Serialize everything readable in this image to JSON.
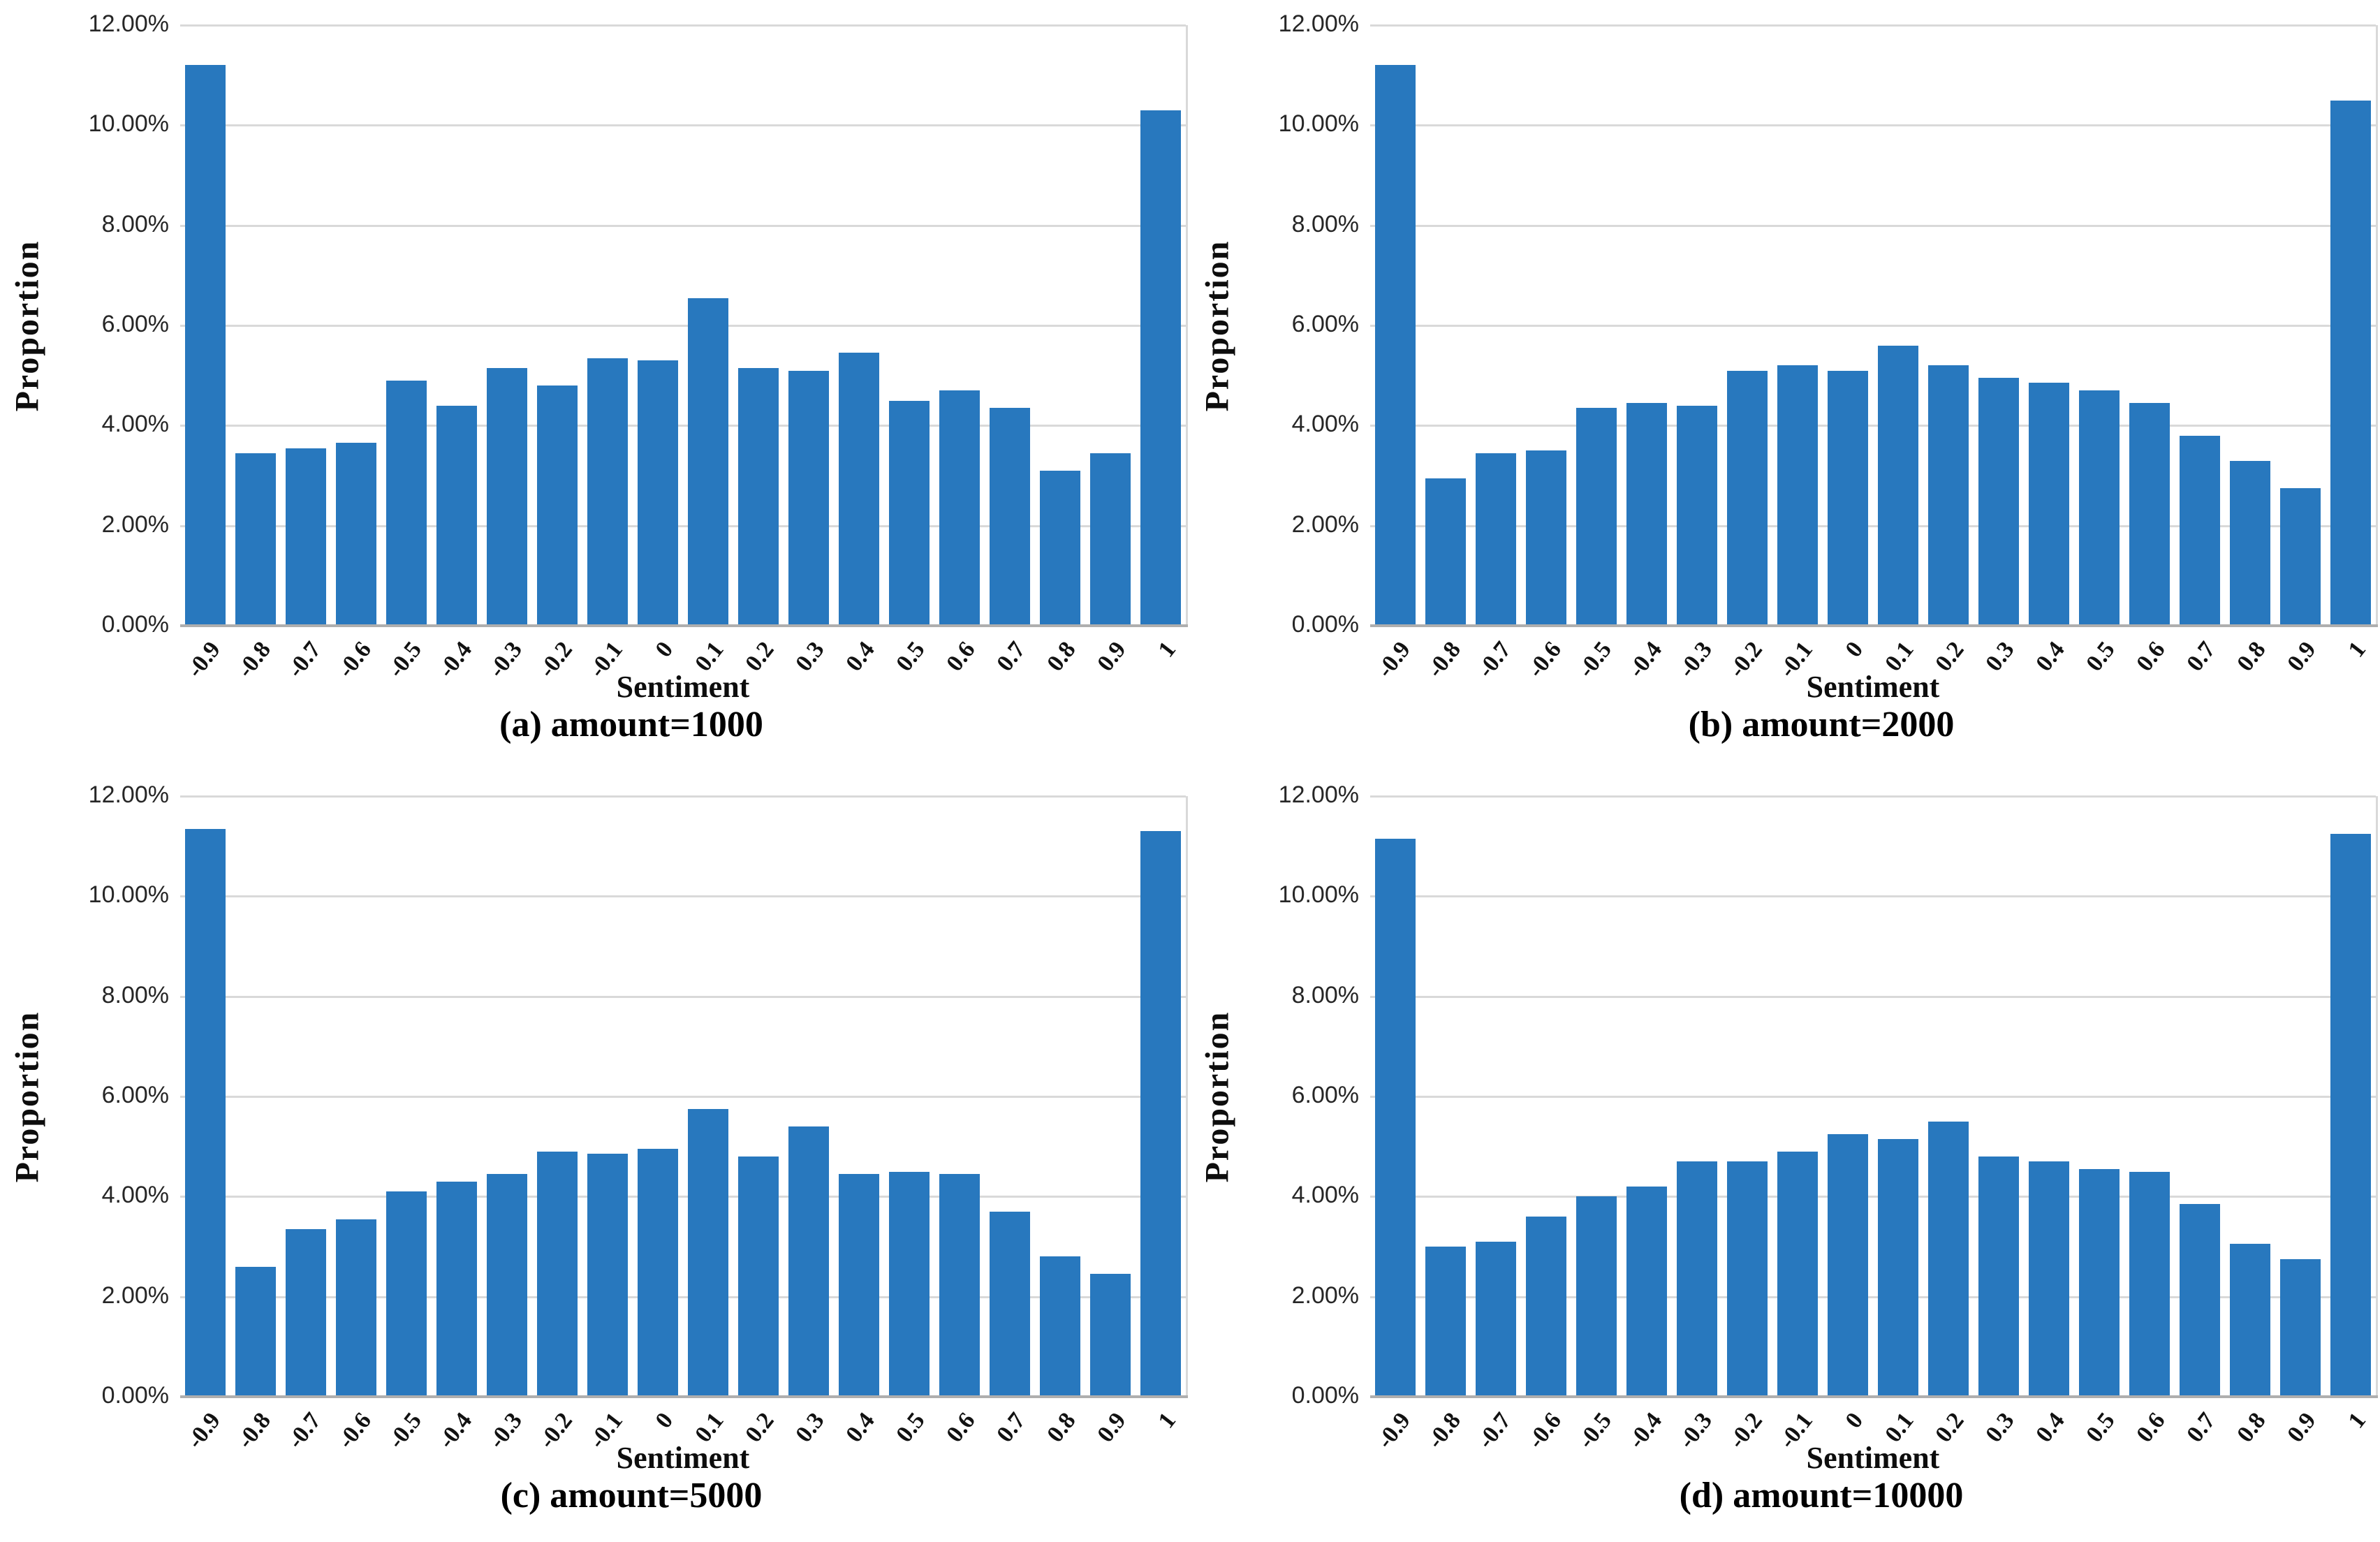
{
  "page": {
    "background": "#ffffff"
  },
  "colors": {
    "bar": "#2878be",
    "gridline": "#d9d9d9",
    "axis_line": "#aeaeae",
    "text": "#000000"
  },
  "chart_data": [
    {
      "type": "bar",
      "caption": "(a) amount=1000",
      "xlabel": "Sentiment",
      "ylabel": "Proportion",
      "grid": true,
      "legend": "none",
      "ylim": [
        0,
        12
      ],
      "ytick_step": 2,
      "ytick_labels": [
        "0.00%",
        "2.00%",
        "4.00%",
        "6.00%",
        "8.00%",
        "10.00%",
        "12.00%"
      ],
      "categories": [
        "-0.9",
        "-0.8",
        "-0.7",
        "-0.6",
        "-0.5",
        "-0.4",
        "-0.3",
        "-0.2",
        "-0.1",
        "0",
        "0.1",
        "0.2",
        "0.3",
        "0.4",
        "0.5",
        "0.6",
        "0.7",
        "0.8",
        "0.9",
        "1"
      ],
      "values": [
        11.2,
        3.45,
        3.55,
        3.65,
        4.9,
        4.4,
        5.15,
        4.8,
        5.35,
        5.3,
        6.55,
        5.15,
        5.1,
        5.45,
        4.5,
        4.7,
        4.35,
        3.1,
        3.45,
        10.3
      ]
    },
    {
      "type": "bar",
      "caption": "(b) amount=2000",
      "xlabel": "Sentiment",
      "ylabel": "Proportion",
      "grid": true,
      "legend": "none",
      "ylim": [
        0,
        12
      ],
      "ytick_step": 2,
      "ytick_labels": [
        "0.00%",
        "2.00%",
        "4.00%",
        "6.00%",
        "8.00%",
        "10.00%",
        "12.00%"
      ],
      "categories": [
        "-0.9",
        "-0.8",
        "-0.7",
        "-0.6",
        "-0.5",
        "-0.4",
        "-0.3",
        "-0.2",
        "-0.1",
        "0",
        "0.1",
        "0.2",
        "0.3",
        "0.4",
        "0.5",
        "0.6",
        "0.7",
        "0.8",
        "0.9",
        "1"
      ],
      "values": [
        11.2,
        2.95,
        3.45,
        3.5,
        4.35,
        4.45,
        4.4,
        5.1,
        5.2,
        5.1,
        5.6,
        5.2,
        4.95,
        4.85,
        4.7,
        4.45,
        3.8,
        3.3,
        2.75,
        10.5
      ]
    },
    {
      "type": "bar",
      "caption": "(c) amount=5000",
      "xlabel": "Sentiment",
      "ylabel": "Proportion",
      "grid": true,
      "legend": "none",
      "ylim": [
        0,
        12
      ],
      "ytick_step": 2,
      "ytick_labels": [
        "0.00%",
        "2.00%",
        "4.00%",
        "6.00%",
        "8.00%",
        "10.00%",
        "12.00%"
      ],
      "categories": [
        "-0.9",
        "-0.8",
        "-0.7",
        "-0.6",
        "-0.5",
        "-0.4",
        "-0.3",
        "-0.2",
        "-0.1",
        "0",
        "0.1",
        "0.2",
        "0.3",
        "0.4",
        "0.5",
        "0.6",
        "0.7",
        "0.8",
        "0.9",
        "1"
      ],
      "values": [
        11.35,
        2.6,
        3.35,
        3.55,
        4.1,
        4.3,
        4.45,
        4.9,
        4.85,
        4.95,
        5.75,
        4.8,
        5.4,
        4.45,
        4.5,
        4.45,
        3.7,
        2.8,
        2.45,
        11.3
      ]
    },
    {
      "type": "bar",
      "caption": "(d) amount=10000",
      "xlabel": "Sentiment",
      "ylabel": "Proportion",
      "grid": true,
      "legend": "none",
      "ylim": [
        0,
        12
      ],
      "ytick_step": 2,
      "ytick_labels": [
        "0.00%",
        "2.00%",
        "4.00%",
        "6.00%",
        "8.00%",
        "10.00%",
        "12.00%"
      ],
      "categories": [
        "-0.9",
        "-0.8",
        "-0.7",
        "-0.6",
        "-0.5",
        "-0.4",
        "-0.3",
        "-0.2",
        "-0.1",
        "0",
        "0.1",
        "0.2",
        "0.3",
        "0.4",
        "0.5",
        "0.6",
        "0.7",
        "0.8",
        "0.9",
        "1"
      ],
      "values": [
        11.15,
        3.0,
        3.1,
        3.6,
        4.0,
        4.2,
        4.7,
        4.7,
        4.9,
        5.25,
        5.15,
        5.5,
        4.8,
        4.7,
        4.55,
        4.5,
        3.85,
        3.05,
        2.75,
        11.25
      ]
    }
  ]
}
